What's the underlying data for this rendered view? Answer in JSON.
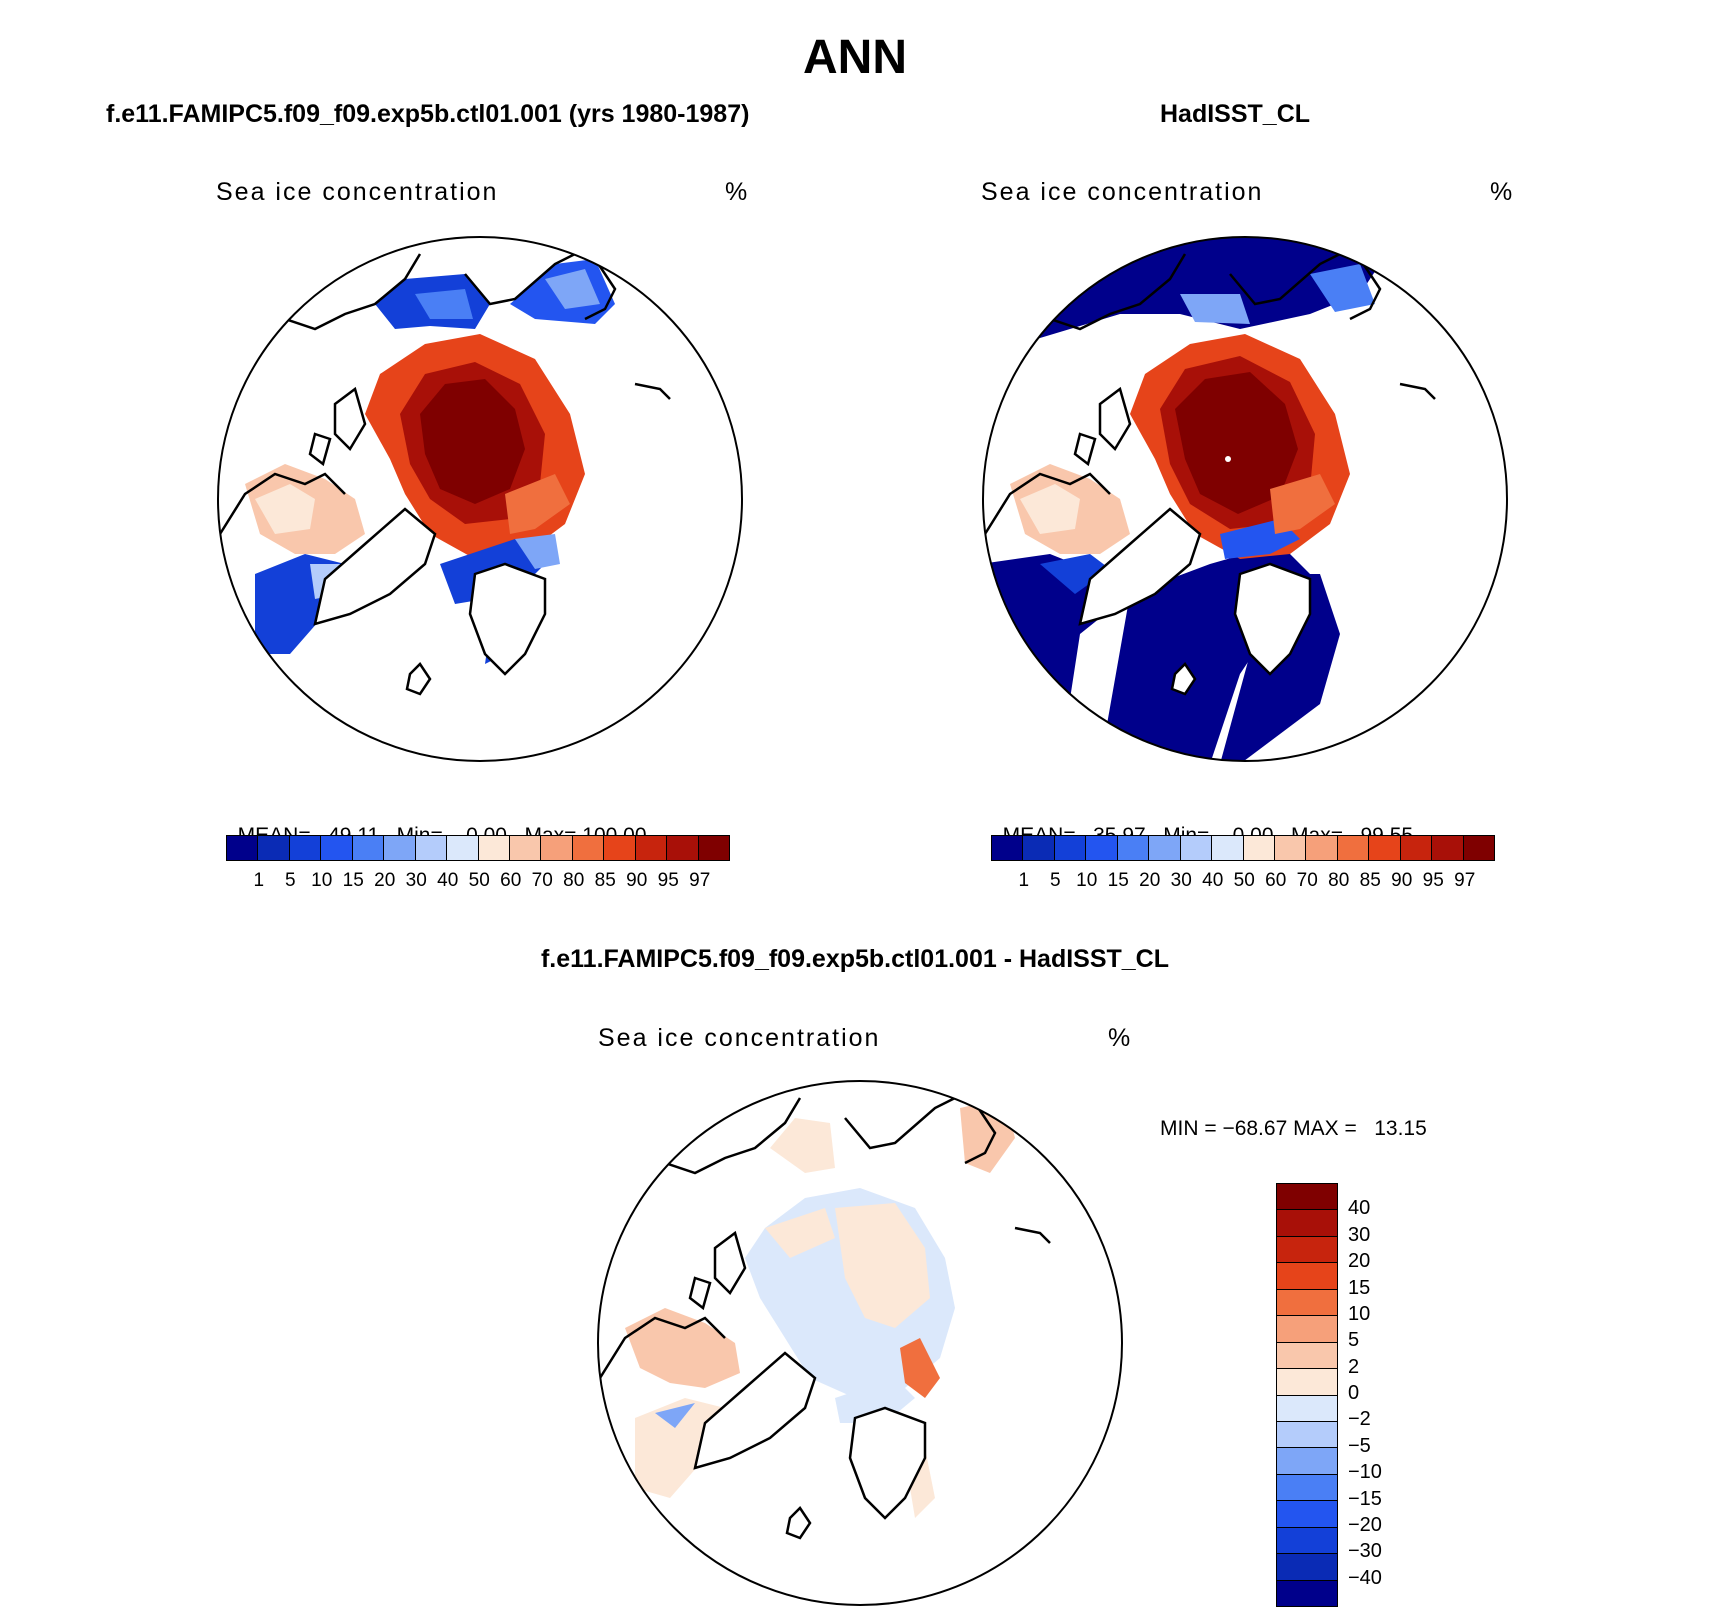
{
  "title": "ANN",
  "panels": {
    "model": {
      "title": "f.e11.FAMIPC5.f09_f09.exp5b.ctl01.001 (yrs 1980-1987)",
      "variable": "Sea ice concentration",
      "units": "%",
      "mean_label": "MEAN=",
      "mean": "49.11",
      "min_label": "Min=",
      "min": "0.00",
      "max_label": "Max=",
      "max": "100.00"
    },
    "obs": {
      "title": "HadISST_CL",
      "variable": "Sea ice concentration",
      "units": "%",
      "mean_label": "MEAN=",
      "mean": "35.97",
      "min_label": "Min=",
      "min": "0.00",
      "max_label": "Max=",
      "max": "99.55"
    },
    "diff": {
      "title": "f.e11.FAMIPC5.f09_f09.exp5b.ctl01.001 - HadISST_CL",
      "variable": "Sea ice concentration",
      "units": "%",
      "min_label": "MIN =",
      "min": "−68.67",
      "max_label": "MAX =",
      "max": "13.15"
    }
  },
  "colorbar_levels": {
    "labels": [
      "1",
      "5",
      "10",
      "15",
      "20",
      "30",
      "40",
      "50",
      "60",
      "70",
      "80",
      "85",
      "90",
      "95",
      "97"
    ],
    "colors": [
      "#00008b",
      "#0a2bb5",
      "#1340d8",
      "#2355f0",
      "#4a7ff5",
      "#7ea6f7",
      "#b4ccfb",
      "#dbe8fb",
      "#fce8d8",
      "#f9c7ac",
      "#f6a07a",
      "#f06f3e",
      "#e6441a",
      "#c7240d",
      "#a81008",
      "#7f0000"
    ]
  },
  "diff_colorbar": {
    "labels": [
      "40",
      "30",
      "20",
      "15",
      "10",
      "5",
      "2",
      "0",
      "−2",
      "−5",
      "−10",
      "−15",
      "−20",
      "−30",
      "−40"
    ],
    "colors": [
      "#7f0000",
      "#a81008",
      "#c7240d",
      "#e6441a",
      "#f06f3e",
      "#f6a07a",
      "#f9c7ac",
      "#fce8d8",
      "#dbe8fb",
      "#b4ccfb",
      "#7ea6f7",
      "#4a7ff5",
      "#2355f0",
      "#1340d8",
      "#0a2bb5",
      "#00008b"
    ]
  }
}
